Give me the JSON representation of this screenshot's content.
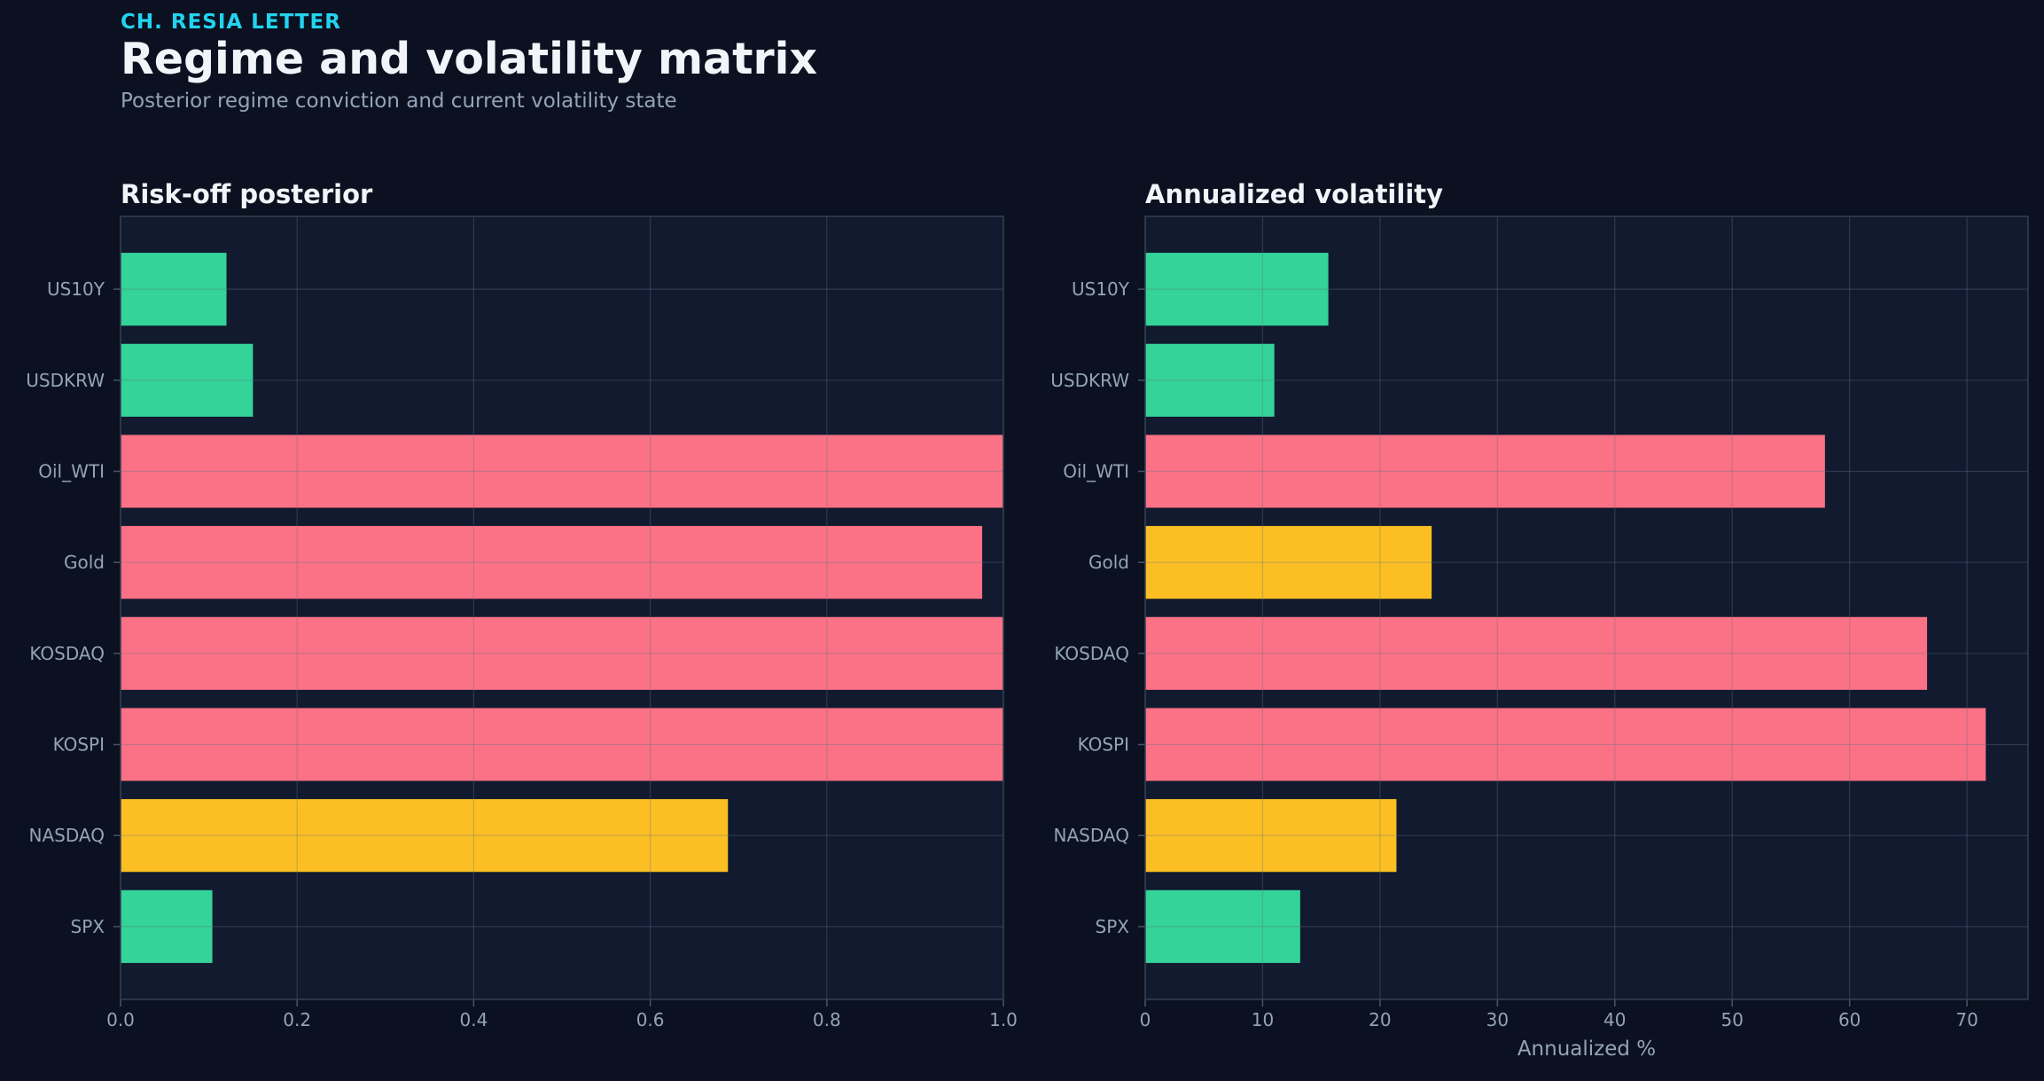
{
  "header": {
    "kicker": "CH. RESIA LETTER",
    "title": "Regime and volatility matrix",
    "subtitle": "Posterior regime conviction and current volatility state"
  },
  "colors": {
    "background": "#0b1120",
    "panel": "#111a2e",
    "green": "#34d399",
    "red": "#fb7185",
    "yellow": "#fbbf24",
    "axis_text": "#94a3b8",
    "grid": "#1f2a40"
  },
  "chart_data": [
    {
      "type": "bar",
      "orientation": "horizontal",
      "title": "Risk-off posterior",
      "xlabel": "",
      "categories": [
        "US10Y",
        "USDKRW",
        "Oil_WTI",
        "Gold",
        "KOSDAQ",
        "KOSPI",
        "NASDAQ",
        "SPX"
      ],
      "values": [
        0.12,
        0.15,
        1.0,
        0.976,
        1.0,
        1.0,
        0.688,
        0.104
      ],
      "bar_colors": [
        "green",
        "green",
        "red",
        "red",
        "red",
        "red",
        "yellow",
        "green"
      ],
      "xlim": [
        0,
        1.0
      ],
      "xticks": [
        "0.0",
        "0.2",
        "0.4",
        "0.6",
        "0.8",
        "1.0"
      ],
      "xtick_values": [
        0,
        0.2,
        0.4,
        0.6,
        0.8,
        1.0
      ],
      "grid": true
    },
    {
      "type": "bar",
      "orientation": "horizontal",
      "title": "Annualized volatility",
      "xlabel": "Annualized %",
      "categories": [
        "US10Y",
        "USDKRW",
        "Oil_WTI",
        "Gold",
        "KOSDAQ",
        "KOSPI",
        "NASDAQ",
        "SPX"
      ],
      "values": [
        15.6,
        11.0,
        57.9,
        24.4,
        66.6,
        71.6,
        21.4,
        13.2
      ],
      "bar_colors": [
        "green",
        "green",
        "red",
        "yellow",
        "red",
        "red",
        "yellow",
        "green"
      ],
      "xlim": [
        0,
        75.2
      ],
      "xticks": [
        "0",
        "10",
        "20",
        "30",
        "40",
        "50",
        "60",
        "70"
      ],
      "xtick_values": [
        0,
        10,
        20,
        30,
        40,
        50,
        60,
        70
      ],
      "grid": true
    }
  ]
}
